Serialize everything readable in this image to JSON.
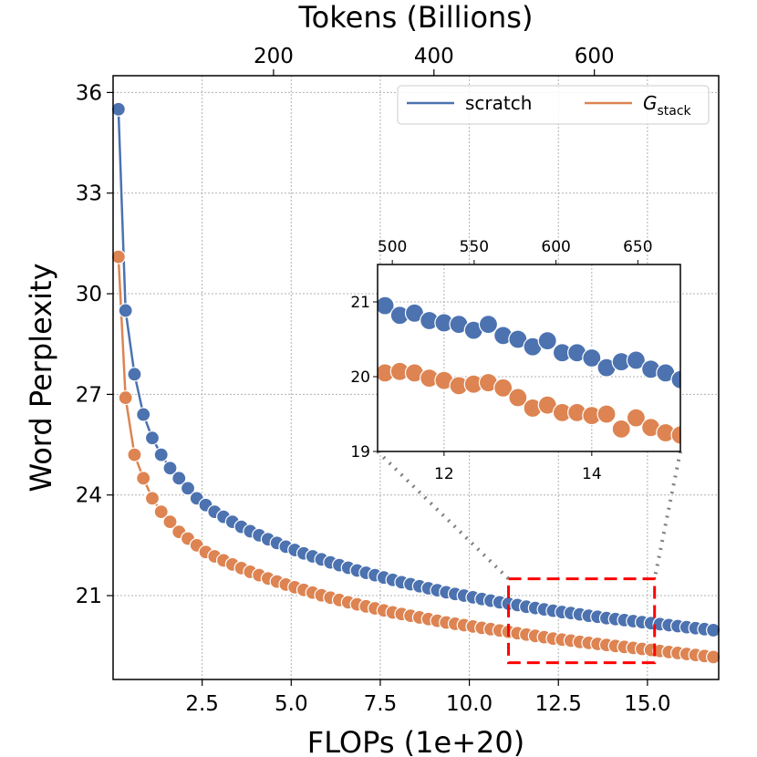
{
  "chart_data": {
    "type": "line",
    "title": "",
    "xlabel": "FLOPs (1e+20)",
    "ylabel": "Word Perplexity",
    "top_xlabel": "Tokens (Billions)",
    "xlim": [
      0,
      17
    ],
    "ylim": [
      18.5,
      36.5
    ],
    "top_xlim": [
      0,
      755
    ],
    "xticks": [
      2.5,
      5.0,
      7.5,
      10.0,
      12.5,
      15.0
    ],
    "xtick_labels": [
      "2.5",
      "5.0",
      "7.5",
      "10.0",
      "12.5",
      "15.0"
    ],
    "yticks": [
      21,
      24,
      27,
      30,
      33,
      36
    ],
    "ytick_labels": [
      "21",
      "24",
      "27",
      "30",
      "33",
      "36"
    ],
    "top_xticks": [
      200,
      400,
      600
    ],
    "top_xtick_labels": [
      "200",
      "400",
      "600"
    ],
    "grid": true,
    "legend_position": "top-right",
    "legend": {
      "scratch_label": "scratch",
      "gstack_main": "G",
      "gstack_sub": "stack"
    },
    "colors": {
      "scratch": "#4c72b0",
      "gstack": "#dd8452",
      "zoom_box": "#ff0000",
      "connector": "#808080"
    },
    "series": [
      {
        "name": "scratch",
        "x": [
          0.15,
          0.35,
          0.6,
          0.85,
          1.1,
          1.35,
          1.6,
          1.85,
          2.1,
          2.35,
          2.6,
          2.85,
          3.1,
          3.35,
          3.6,
          3.85,
          4.1,
          4.35,
          4.6,
          4.85,
          5.1,
          5.35,
          5.6,
          5.85,
          6.1,
          6.35,
          6.6,
          6.85,
          7.1,
          7.35,
          7.6,
          7.85,
          8.1,
          8.35,
          8.6,
          8.85,
          9.1,
          9.35,
          9.6,
          9.85,
          10.1,
          10.35,
          10.6,
          10.85,
          11.1,
          11.35,
          11.6,
          11.85,
          12.1,
          12.35,
          12.6,
          12.85,
          13.1,
          13.35,
          13.6,
          13.85,
          14.1,
          14.35,
          14.6,
          14.85,
          15.1,
          15.35,
          15.6,
          15.85,
          16.1,
          16.35,
          16.6,
          16.85
        ],
        "y": [
          35.5,
          29.5,
          27.6,
          26.4,
          25.7,
          25.2,
          24.8,
          24.5,
          24.2,
          23.9,
          23.7,
          23.5,
          23.35,
          23.2,
          23.05,
          22.92,
          22.8,
          22.68,
          22.57,
          22.46,
          22.36,
          22.26,
          22.17,
          22.08,
          21.99,
          21.91,
          21.83,
          21.75,
          21.68,
          21.61,
          21.54,
          21.47,
          21.4,
          21.34,
          21.28,
          21.22,
          21.16,
          21.1,
          21.05,
          21.0,
          20.95,
          20.9,
          20.85,
          20.8,
          20.76,
          20.72,
          20.67,
          20.63,
          20.59,
          20.55,
          20.51,
          20.48,
          20.44,
          20.4,
          20.37,
          20.33,
          20.3,
          20.27,
          20.24,
          20.21,
          20.18,
          20.15,
          20.12,
          20.09,
          20.06,
          20.03,
          20.0,
          19.97
        ]
      },
      {
        "name": "G_stack",
        "x": [
          0.15,
          0.35,
          0.6,
          0.85,
          1.1,
          1.35,
          1.6,
          1.85,
          2.1,
          2.35,
          2.6,
          2.85,
          3.1,
          3.35,
          3.6,
          3.85,
          4.1,
          4.35,
          4.6,
          4.85,
          5.1,
          5.35,
          5.6,
          5.85,
          6.1,
          6.35,
          6.6,
          6.85,
          7.1,
          7.35,
          7.6,
          7.85,
          8.1,
          8.35,
          8.6,
          8.85,
          9.1,
          9.35,
          9.6,
          9.85,
          10.1,
          10.35,
          10.6,
          10.85,
          11.1,
          11.35,
          11.6,
          11.85,
          12.1,
          12.35,
          12.6,
          12.85,
          13.1,
          13.35,
          13.6,
          13.85,
          14.1,
          14.35,
          14.6,
          14.85,
          15.1,
          15.35,
          15.6,
          15.85,
          16.1,
          16.35,
          16.6,
          16.85
        ],
        "y": [
          31.1,
          26.9,
          25.2,
          24.5,
          23.9,
          23.5,
          23.2,
          22.9,
          22.7,
          22.5,
          22.3,
          22.17,
          22.05,
          21.93,
          21.82,
          21.71,
          21.61,
          21.51,
          21.42,
          21.33,
          21.25,
          21.17,
          21.09,
          21.01,
          20.94,
          20.87,
          20.8,
          20.74,
          20.68,
          20.62,
          20.56,
          20.5,
          20.45,
          20.4,
          20.35,
          20.3,
          20.25,
          20.2,
          20.16,
          20.12,
          20.08,
          20.04,
          20.0,
          19.96,
          19.92,
          19.88,
          19.84,
          19.8,
          19.76,
          19.72,
          19.69,
          19.66,
          19.62,
          19.59,
          19.56,
          19.53,
          19.5,
          19.47,
          19.44,
          19.41,
          19.38,
          19.35,
          19.32,
          19.29,
          19.26,
          19.23,
          19.2,
          19.17
        ]
      }
    ],
    "inset": {
      "xlim": [
        11.1,
        15.2
      ],
      "ylim": [
        19.0,
        21.5
      ],
      "top_xlim": [
        491,
        676
      ],
      "xticks": [
        12,
        14
      ],
      "xtick_labels": [
        "12",
        "14"
      ],
      "yticks": [
        19,
        20,
        21
      ],
      "ytick_labels": [
        "19",
        "20",
        "21"
      ],
      "top_xticks": [
        500,
        550,
        600,
        650
      ],
      "top_xtick_labels": [
        "500",
        "550",
        "600",
        "650"
      ],
      "series": [
        {
          "name": "scratch",
          "x": [
            11.2,
            11.4,
            11.6,
            11.8,
            12.0,
            12.2,
            12.4,
            12.6,
            12.8,
            13.0,
            13.2,
            13.4,
            13.6,
            13.8,
            14.0,
            14.2,
            14.4,
            14.6,
            14.8,
            15.0,
            15.2
          ],
          "y": [
            20.95,
            20.82,
            20.85,
            20.75,
            20.72,
            20.7,
            20.62,
            20.7,
            20.55,
            20.5,
            20.4,
            20.48,
            20.32,
            20.32,
            20.25,
            20.12,
            20.2,
            20.22,
            20.1,
            20.05,
            19.96
          ]
        },
        {
          "name": "G_stack",
          "x": [
            11.2,
            11.4,
            11.6,
            11.8,
            12.0,
            12.2,
            12.4,
            12.6,
            12.8,
            13.0,
            13.2,
            13.4,
            13.6,
            13.8,
            14.0,
            14.2,
            14.4,
            14.6,
            14.8,
            15.0,
            15.2
          ],
          "y": [
            20.05,
            20.07,
            20.05,
            19.98,
            19.95,
            19.88,
            19.9,
            19.92,
            19.85,
            19.72,
            19.58,
            19.62,
            19.52,
            19.52,
            19.48,
            19.5,
            19.3,
            19.45,
            19.32,
            19.25,
            19.22
          ]
        }
      ]
    }
  }
}
